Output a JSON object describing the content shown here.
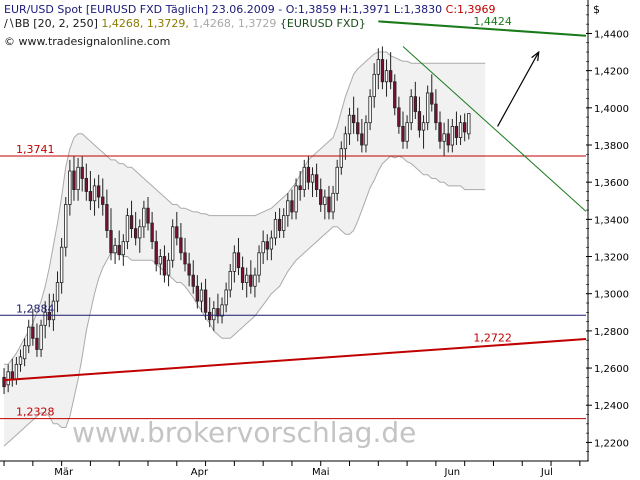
{
  "header": {
    "instrument": "EUR/USD Spot [EURUSD FXD  Täglich]",
    "date": "23.06.2009",
    "open": "O:1,3859",
    "high": "H:1,3971",
    "low": "L:1,3830",
    "close": "C:1,3969",
    "bb_label": "BB [20, 2, 250]",
    "bb_upper": "1,4268",
    "bb_mid": "1,3729",
    "bb_lower": "1,4268",
    "bb_lower2": "1,3729",
    "bb_source": "{EURUSD FXD}",
    "copyright": "© www.tradesignalonline.com"
  },
  "watermark": "www.brokervorschlag.de",
  "chart_data": {
    "type": "candlestick",
    "currency": "$",
    "ylim": [
      1.21,
      1.458
    ],
    "yticks": [
      "1,4400",
      "1,4200",
      "1,4000",
      "1,3800",
      "1,3600",
      "1,3400",
      "1,3200",
      "1,3000",
      "1,2800",
      "1,2600",
      "1,2400",
      "1,2200"
    ],
    "ytick_values": [
      1.44,
      1.42,
      1.4,
      1.38,
      1.36,
      1.34,
      1.32,
      1.3,
      1.28,
      1.26,
      1.24,
      1.22
    ],
    "xticks": [
      "Mär",
      "Apr",
      "Mai",
      "Jun",
      "Jul"
    ],
    "xtick_bars": [
      14.5,
      47.5,
      77,
      109,
      132
    ],
    "bar_count": 142,
    "levels": [
      {
        "value": "1,2884",
        "y": 1.2884,
        "color": "#1a1a6a"
      },
      {
        "value": "1,3741",
        "y": 1.3741,
        "color": "#c00000"
      },
      {
        "value": "1,2328",
        "y": 1.2328,
        "color": "#c00000"
      }
    ],
    "lines": [
      {
        "label": "1,4424",
        "color": "#1a7a1a",
        "from": [
          91,
          1.4465
        ],
        "to": [
          142,
          1.4388
        ],
        "label_at": [
          118,
          1.4424
        ]
      },
      {
        "label": "1,2722",
        "color": "#c00000",
        "from": [
          0,
          1.2535
        ],
        "to": [
          142,
          1.2756
        ],
        "label_at": [
          118,
          1.2722
        ]
      },
      {
        "label": "",
        "color": "#1a7a1a",
        "from": [
          97,
          1.433
        ],
        "to": [
          142,
          1.3443
        ]
      }
    ],
    "arrow": {
      "from": [
        120,
        1.39
      ],
      "to": [
        130,
        1.43
      ]
    },
    "candles": [
      {
        "o": 1.255,
        "h": 1.26,
        "l": 1.246,
        "c": 1.25
      },
      {
        "o": 1.251,
        "h": 1.262,
        "l": 1.247,
        "c": 1.258
      },
      {
        "o": 1.258,
        "h": 1.265,
        "l": 1.25,
        "c": 1.254
      },
      {
        "o": 1.254,
        "h": 1.266,
        "l": 1.251,
        "c": 1.262
      },
      {
        "o": 1.262,
        "h": 1.27,
        "l": 1.258,
        "c": 1.266
      },
      {
        "o": 1.265,
        "h": 1.276,
        "l": 1.261,
        "c": 1.272
      },
      {
        "o": 1.272,
        "h": 1.286,
        "l": 1.268,
        "c": 1.282
      },
      {
        "o": 1.282,
        "h": 1.292,
        "l": 1.272,
        "c": 1.276
      },
      {
        "o": 1.276,
        "h": 1.284,
        "l": 1.266,
        "c": 1.27
      },
      {
        "o": 1.27,
        "h": 1.286,
        "l": 1.266,
        "c": 1.283
      },
      {
        "o": 1.283,
        "h": 1.296,
        "l": 1.276,
        "c": 1.29
      },
      {
        "o": 1.29,
        "h": 1.3,
        "l": 1.282,
        "c": 1.286
      },
      {
        "o": 1.286,
        "h": 1.3,
        "l": 1.28,
        "c": 1.296
      },
      {
        "o": 1.296,
        "h": 1.312,
        "l": 1.29,
        "c": 1.306
      },
      {
        "o": 1.306,
        "h": 1.33,
        "l": 1.3,
        "c": 1.325
      },
      {
        "o": 1.325,
        "h": 1.352,
        "l": 1.32,
        "c": 1.348
      },
      {
        "o": 1.348,
        "h": 1.372,
        "l": 1.342,
        "c": 1.366
      },
      {
        "o": 1.366,
        "h": 1.374,
        "l": 1.35,
        "c": 1.356
      },
      {
        "o": 1.356,
        "h": 1.373,
        "l": 1.35,
        "c": 1.368
      },
      {
        "o": 1.368,
        "h": 1.374,
        "l": 1.355,
        "c": 1.362
      },
      {
        "o": 1.362,
        "h": 1.37,
        "l": 1.35,
        "c": 1.355
      },
      {
        "o": 1.355,
        "h": 1.366,
        "l": 1.345,
        "c": 1.35
      },
      {
        "o": 1.35,
        "h": 1.362,
        "l": 1.342,
        "c": 1.358
      },
      {
        "o": 1.358,
        "h": 1.364,
        "l": 1.346,
        "c": 1.352
      },
      {
        "o": 1.352,
        "h": 1.362,
        "l": 1.342,
        "c": 1.348
      },
      {
        "o": 1.348,
        "h": 1.356,
        "l": 1.33,
        "c": 1.334
      },
      {
        "o": 1.334,
        "h": 1.346,
        "l": 1.318,
        "c": 1.322
      },
      {
        "o": 1.322,
        "h": 1.33,
        "l": 1.316,
        "c": 1.326
      },
      {
        "o": 1.326,
        "h": 1.334,
        "l": 1.318,
        "c": 1.321
      },
      {
        "o": 1.321,
        "h": 1.332,
        "l": 1.315,
        "c": 1.328
      },
      {
        "o": 1.328,
        "h": 1.346,
        "l": 1.324,
        "c": 1.342
      },
      {
        "o": 1.342,
        "h": 1.35,
        "l": 1.33,
        "c": 1.335
      },
      {
        "o": 1.335,
        "h": 1.344,
        "l": 1.326,
        "c": 1.33
      },
      {
        "o": 1.33,
        "h": 1.34,
        "l": 1.322,
        "c": 1.336
      },
      {
        "o": 1.336,
        "h": 1.35,
        "l": 1.33,
        "c": 1.346
      },
      {
        "o": 1.346,
        "h": 1.352,
        "l": 1.334,
        "c": 1.338
      },
      {
        "o": 1.338,
        "h": 1.344,
        "l": 1.324,
        "c": 1.328
      },
      {
        "o": 1.328,
        "h": 1.334,
        "l": 1.312,
        "c": 1.316
      },
      {
        "o": 1.316,
        "h": 1.324,
        "l": 1.31,
        "c": 1.32
      },
      {
        "o": 1.32,
        "h": 1.326,
        "l": 1.306,
        "c": 1.31
      },
      {
        "o": 1.31,
        "h": 1.322,
        "l": 1.304,
        "c": 1.318
      },
      {
        "o": 1.318,
        "h": 1.34,
        "l": 1.314,
        "c": 1.336
      },
      {
        "o": 1.336,
        "h": 1.344,
        "l": 1.326,
        "c": 1.33
      },
      {
        "o": 1.33,
        "h": 1.338,
        "l": 1.318,
        "c": 1.322
      },
      {
        "o": 1.322,
        "h": 1.33,
        "l": 1.312,
        "c": 1.316
      },
      {
        "o": 1.316,
        "h": 1.322,
        "l": 1.304,
        "c": 1.31
      },
      {
        "o": 1.31,
        "h": 1.318,
        "l": 1.3,
        "c": 1.304
      },
      {
        "o": 1.304,
        "h": 1.31,
        "l": 1.292,
        "c": 1.296
      },
      {
        "o": 1.296,
        "h": 1.306,
        "l": 1.29,
        "c": 1.302
      },
      {
        "o": 1.302,
        "h": 1.308,
        "l": 1.286,
        "c": 1.29
      },
      {
        "o": 1.29,
        "h": 1.298,
        "l": 1.282,
        "c": 1.286
      },
      {
        "o": 1.286,
        "h": 1.296,
        "l": 1.28,
        "c": 1.292
      },
      {
        "o": 1.292,
        "h": 1.3,
        "l": 1.284,
        "c": 1.288
      },
      {
        "o": 1.288,
        "h": 1.298,
        "l": 1.284,
        "c": 1.294
      },
      {
        "o": 1.294,
        "h": 1.306,
        "l": 1.29,
        "c": 1.302
      },
      {
        "o": 1.302,
        "h": 1.316,
        "l": 1.298,
        "c": 1.312
      },
      {
        "o": 1.312,
        "h": 1.326,
        "l": 1.306,
        "c": 1.322
      },
      {
        "o": 1.322,
        "h": 1.33,
        "l": 1.31,
        "c": 1.314
      },
      {
        "o": 1.314,
        "h": 1.32,
        "l": 1.302,
        "c": 1.306
      },
      {
        "o": 1.306,
        "h": 1.314,
        "l": 1.298,
        "c": 1.31
      },
      {
        "o": 1.31,
        "h": 1.318,
        "l": 1.3,
        "c": 1.304
      },
      {
        "o": 1.304,
        "h": 1.314,
        "l": 1.298,
        "c": 1.31
      },
      {
        "o": 1.31,
        "h": 1.326,
        "l": 1.306,
        "c": 1.322
      },
      {
        "o": 1.322,
        "h": 1.334,
        "l": 1.316,
        "c": 1.328
      },
      {
        "o": 1.328,
        "h": 1.332,
        "l": 1.318,
        "c": 1.324
      },
      {
        "o": 1.324,
        "h": 1.334,
        "l": 1.318,
        "c": 1.33
      },
      {
        "o": 1.33,
        "h": 1.344,
        "l": 1.326,
        "c": 1.34
      },
      {
        "o": 1.34,
        "h": 1.346,
        "l": 1.33,
        "c": 1.334
      },
      {
        "o": 1.334,
        "h": 1.346,
        "l": 1.33,
        "c": 1.342
      },
      {
        "o": 1.342,
        "h": 1.354,
        "l": 1.336,
        "c": 1.35
      },
      {
        "o": 1.35,
        "h": 1.356,
        "l": 1.34,
        "c": 1.344
      },
      {
        "o": 1.344,
        "h": 1.362,
        "l": 1.34,
        "c": 1.358
      },
      {
        "o": 1.358,
        "h": 1.366,
        "l": 1.35,
        "c": 1.356
      },
      {
        "o": 1.356,
        "h": 1.372,
        "l": 1.352,
        "c": 1.368
      },
      {
        "o": 1.368,
        "h": 1.374,
        "l": 1.356,
        "c": 1.36
      },
      {
        "o": 1.36,
        "h": 1.368,
        "l": 1.352,
        "c": 1.364
      },
      {
        "o": 1.364,
        "h": 1.37,
        "l": 1.352,
        "c": 1.356
      },
      {
        "o": 1.356,
        "h": 1.362,
        "l": 1.344,
        "c": 1.348
      },
      {
        "o": 1.348,
        "h": 1.356,
        "l": 1.34,
        "c": 1.352
      },
      {
        "o": 1.352,
        "h": 1.358,
        "l": 1.34,
        "c": 1.344
      },
      {
        "o": 1.344,
        "h": 1.358,
        "l": 1.34,
        "c": 1.354
      },
      {
        "o": 1.354,
        "h": 1.372,
        "l": 1.35,
        "c": 1.368
      },
      {
        "o": 1.368,
        "h": 1.382,
        "l": 1.364,
        "c": 1.378
      },
      {
        "o": 1.378,
        "h": 1.39,
        "l": 1.372,
        "c": 1.386
      },
      {
        "o": 1.386,
        "h": 1.4,
        "l": 1.38,
        "c": 1.396
      },
      {
        "o": 1.396,
        "h": 1.406,
        "l": 1.386,
        "c": 1.392
      },
      {
        "o": 1.392,
        "h": 1.4,
        "l": 1.382,
        "c": 1.386
      },
      {
        "o": 1.386,
        "h": 1.394,
        "l": 1.376,
        "c": 1.38
      },
      {
        "o": 1.38,
        "h": 1.396,
        "l": 1.376,
        "c": 1.392
      },
      {
        "o": 1.392,
        "h": 1.41,
        "l": 1.388,
        "c": 1.406
      },
      {
        "o": 1.406,
        "h": 1.424,
        "l": 1.4,
        "c": 1.418
      },
      {
        "o": 1.418,
        "h": 1.432,
        "l": 1.41,
        "c": 1.426
      },
      {
        "o": 1.426,
        "h": 1.433,
        "l": 1.41,
        "c": 1.414
      },
      {
        "o": 1.414,
        "h": 1.426,
        "l": 1.406,
        "c": 1.42
      },
      {
        "o": 1.42,
        "h": 1.43,
        "l": 1.41,
        "c": 1.414
      },
      {
        "o": 1.414,
        "h": 1.418,
        "l": 1.396,
        "c": 1.4
      },
      {
        "o": 1.4,
        "h": 1.406,
        "l": 1.386,
        "c": 1.39
      },
      {
        "o": 1.39,
        "h": 1.398,
        "l": 1.378,
        "c": 1.382
      },
      {
        "o": 1.382,
        "h": 1.396,
        "l": 1.378,
        "c": 1.392
      },
      {
        "o": 1.392,
        "h": 1.41,
        "l": 1.388,
        "c": 1.406
      },
      {
        "o": 1.406,
        "h": 1.414,
        "l": 1.394,
        "c": 1.398
      },
      {
        "o": 1.398,
        "h": 1.406,
        "l": 1.384,
        "c": 1.388
      },
      {
        "o": 1.388,
        "h": 1.396,
        "l": 1.378,
        "c": 1.392
      },
      {
        "o": 1.392,
        "h": 1.412,
        "l": 1.388,
        "c": 1.408
      },
      {
        "o": 1.408,
        "h": 1.418,
        "l": 1.398,
        "c": 1.402
      },
      {
        "o": 1.402,
        "h": 1.41,
        "l": 1.388,
        "c": 1.392
      },
      {
        "o": 1.392,
        "h": 1.398,
        "l": 1.378,
        "c": 1.382
      },
      {
        "o": 1.382,
        "h": 1.392,
        "l": 1.374,
        "c": 1.386
      },
      {
        "o": 1.386,
        "h": 1.394,
        "l": 1.376,
        "c": 1.38
      },
      {
        "o": 1.38,
        "h": 1.394,
        "l": 1.376,
        "c": 1.39
      },
      {
        "o": 1.39,
        "h": 1.398,
        "l": 1.38,
        "c": 1.384
      },
      {
        "o": 1.384,
        "h": 1.396,
        "l": 1.38,
        "c": 1.392
      },
      {
        "o": 1.392,
        "h": 1.397,
        "l": 1.382,
        "c": 1.387
      },
      {
        "o": 1.386,
        "h": 1.397,
        "l": 1.383,
        "c": 1.3969
      }
    ],
    "bollinger": {
      "upper": [
        1.262,
        1.262,
        1.265,
        1.268,
        1.272,
        1.276,
        1.28,
        1.284,
        1.29,
        1.296,
        1.304,
        1.314,
        1.326,
        1.338,
        1.352,
        1.368,
        1.378,
        1.384,
        1.386,
        1.386,
        1.384,
        1.382,
        1.38,
        1.378,
        1.376,
        1.374,
        1.372,
        1.372,
        1.37,
        1.37,
        1.368,
        1.368,
        1.366,
        1.364,
        1.362,
        1.36,
        1.358,
        1.356,
        1.354,
        1.352,
        1.35,
        1.348,
        1.348,
        1.346,
        1.346,
        1.345,
        1.344,
        1.344,
        1.343,
        1.343,
        1.342,
        1.342,
        1.342,
        1.342,
        1.342,
        1.342,
        1.342,
        1.342,
        1.342,
        1.342,
        1.342,
        1.342,
        1.343,
        1.344,
        1.345,
        1.346,
        1.348,
        1.35,
        1.352,
        1.354,
        1.357,
        1.36,
        1.364,
        1.368,
        1.372,
        1.374,
        1.376,
        1.378,
        1.38,
        1.382,
        1.384,
        1.39,
        1.398,
        1.406,
        1.412,
        1.418,
        1.421,
        1.423,
        1.425,
        1.427,
        1.429,
        1.43,
        1.43,
        1.43,
        1.428,
        1.427,
        1.426,
        1.425,
        1.425,
        1.424,
        1.424,
        1.424,
        1.424,
        1.424,
        1.424,
        1.424,
        1.424,
        1.424,
        1.424,
        1.424,
        1.424,
        1.424,
        1.424,
        1.424,
        1.424,
        1.424,
        1.424,
        1.424
      ],
      "mid": [
        1.24,
        1.241,
        1.243,
        1.246,
        1.249,
        1.252,
        1.255,
        1.258,
        1.262,
        1.266,
        1.27,
        1.274,
        1.278,
        1.284,
        1.29,
        1.298,
        1.306,
        1.314,
        1.32,
        1.326,
        1.332,
        1.336,
        1.34,
        1.343,
        1.345,
        1.346,
        1.347,
        1.347,
        1.346,
        1.345,
        1.344,
        1.343,
        1.342,
        1.341,
        1.34,
        1.339,
        1.338,
        1.336,
        1.334,
        1.332,
        1.33,
        1.328,
        1.327,
        1.326,
        1.325,
        1.323,
        1.321,
        1.319,
        1.317,
        1.315,
        1.313,
        1.311,
        1.31,
        1.309,
        1.309,
        1.309,
        1.31,
        1.311,
        1.312,
        1.313,
        1.314,
        1.315,
        1.317,
        1.319,
        1.321,
        1.323,
        1.325,
        1.327,
        1.33,
        1.333,
        1.336,
        1.339,
        1.342,
        1.345,
        1.348,
        1.35,
        1.352,
        1.354,
        1.356,
        1.358,
        1.36,
        1.363,
        1.366,
        1.369,
        1.372,
        1.376,
        1.38,
        1.384,
        1.388,
        1.392,
        1.395,
        1.398,
        1.4,
        1.401,
        1.401,
        1.4,
        1.4,
        1.399,
        1.398,
        1.397,
        1.396,
        1.395,
        1.394,
        1.394,
        1.393,
        1.393,
        1.392,
        1.392,
        1.391,
        1.391,
        1.391,
        1.391,
        1.39,
        1.39,
        1.39,
        1.39,
        1.39,
        1.39
      ],
      "lower": [
        1.218,
        1.22,
        1.222,
        1.224,
        1.226,
        1.228,
        1.23,
        1.232,
        1.234,
        1.236,
        1.236,
        1.234,
        1.23,
        1.23,
        1.228,
        1.228,
        1.234,
        1.244,
        1.254,
        1.266,
        1.28,
        1.29,
        1.3,
        1.308,
        1.314,
        1.318,
        1.322,
        1.322,
        1.322,
        1.32,
        1.32,
        1.318,
        1.318,
        1.318,
        1.318,
        1.318,
        1.318,
        1.316,
        1.314,
        1.312,
        1.31,
        1.308,
        1.306,
        1.306,
        1.304,
        1.301,
        1.298,
        1.294,
        1.291,
        1.287,
        1.284,
        1.28,
        1.278,
        1.276,
        1.276,
        1.276,
        1.278,
        1.28,
        1.282,
        1.284,
        1.286,
        1.288,
        1.291,
        1.294,
        1.297,
        1.3,
        1.302,
        1.304,
        1.308,
        1.312,
        1.315,
        1.318,
        1.32,
        1.322,
        1.324,
        1.326,
        1.328,
        1.33,
        1.332,
        1.334,
        1.336,
        1.336,
        1.334,
        1.332,
        1.332,
        1.334,
        1.339,
        1.345,
        1.351,
        1.357,
        1.361,
        1.366,
        1.37,
        1.372,
        1.374,
        1.373,
        1.374,
        1.373,
        1.371,
        1.37,
        1.368,
        1.366,
        1.364,
        1.364,
        1.362,
        1.362,
        1.36,
        1.36,
        1.358,
        1.358,
        1.358,
        1.358,
        1.356,
        1.356,
        1.356,
        1.356,
        1.356,
        1.356
      ]
    }
  }
}
